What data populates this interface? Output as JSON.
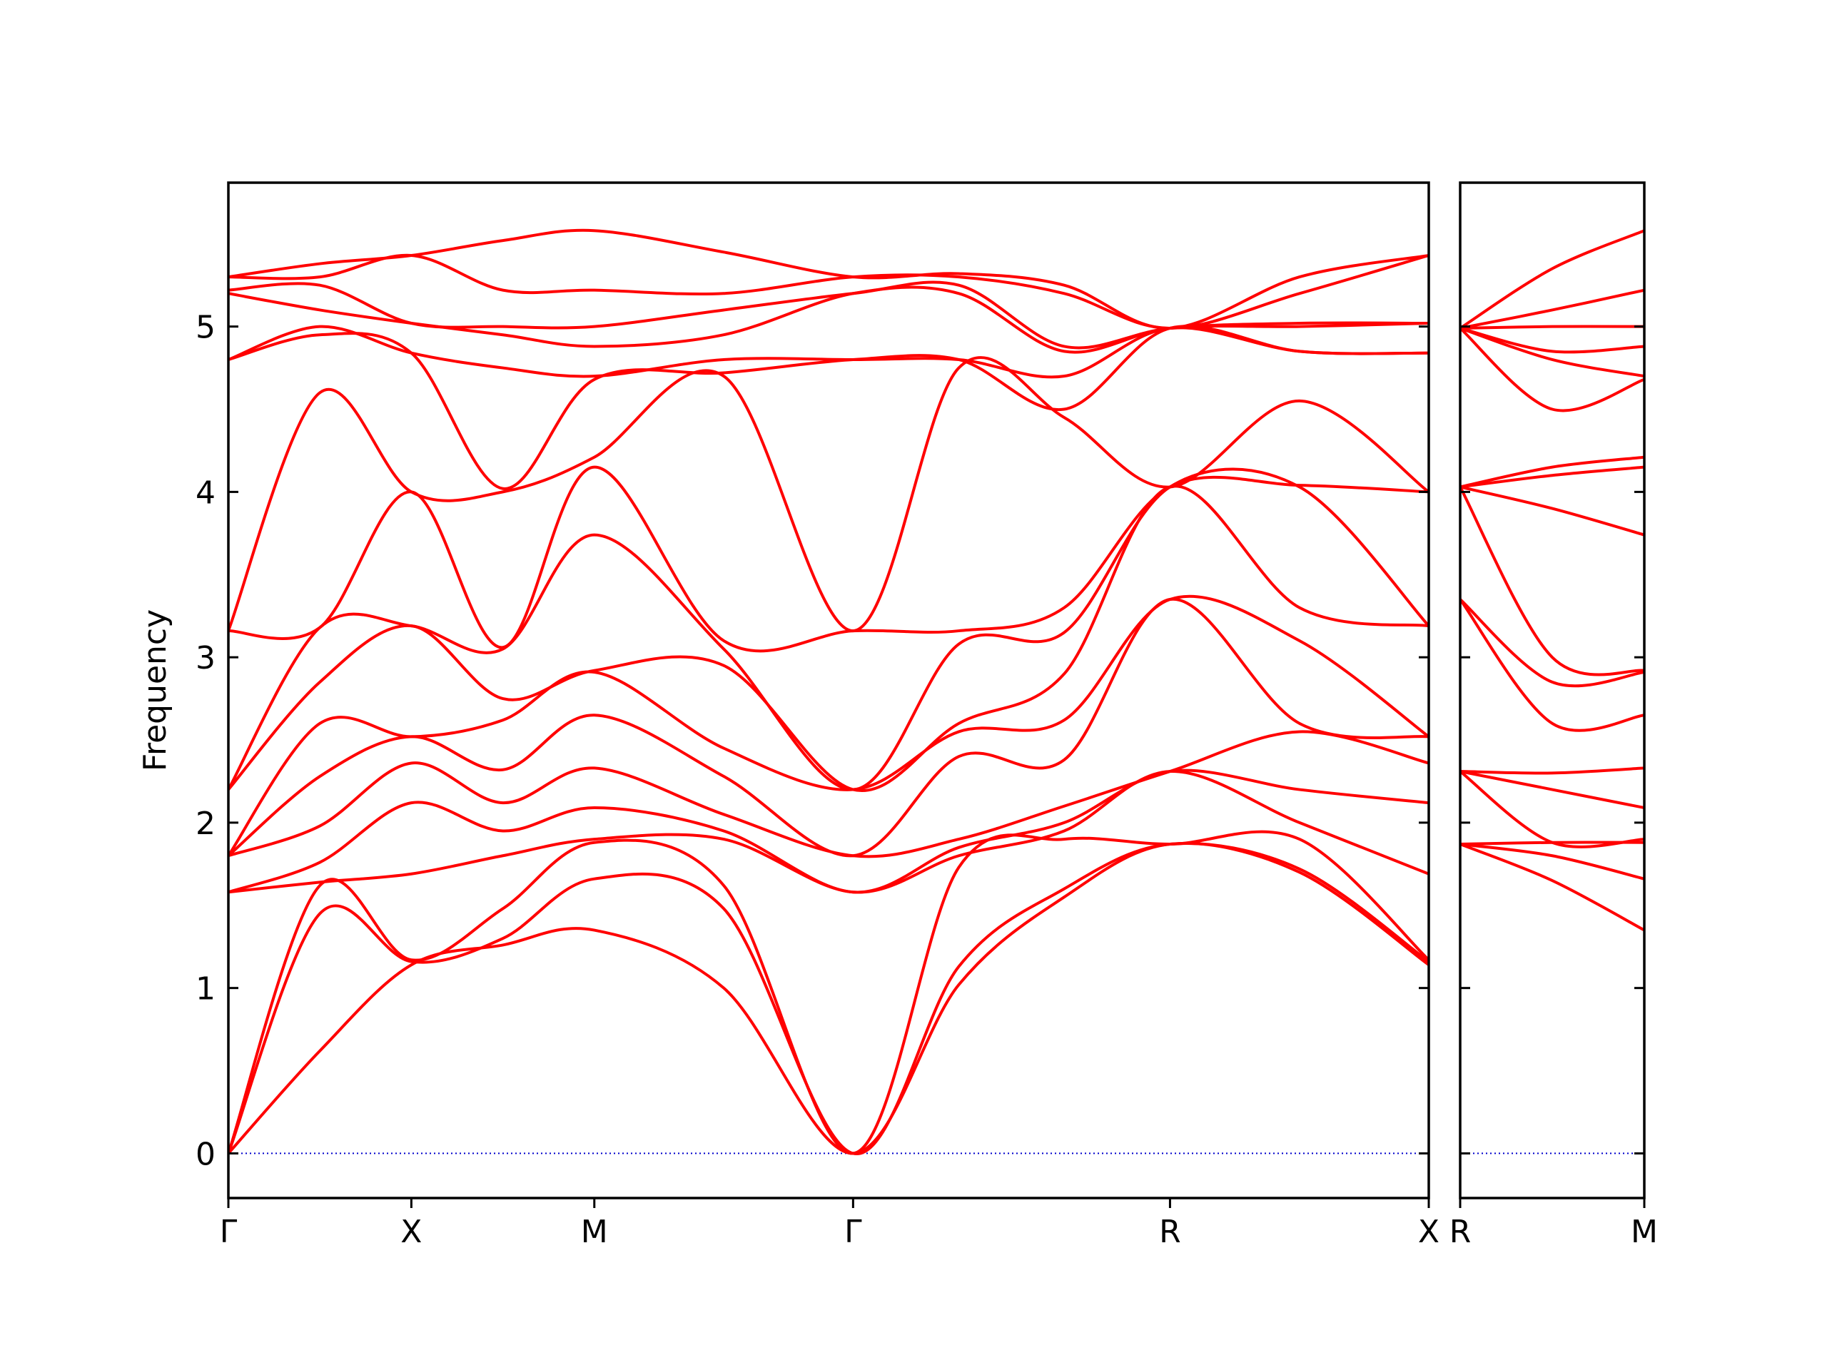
{
  "chart_data": [
    {
      "type": "line",
      "ylabel": "Frequency",
      "color": "#ff0000",
      "line_width": 4,
      "x": [
        0,
        0.25,
        0.5,
        0.75,
        1.0,
        1.3536,
        1.7071,
        1.996,
        2.284,
        2.5731,
        2.927,
        3.2802
      ],
      "xlim": [
        0,
        3.2802
      ],
      "xticks": [
        {
          "value": 0,
          "label": "Γ"
        },
        {
          "value": 0.5,
          "label": "X"
        },
        {
          "value": 1.0,
          "label": "M"
        },
        {
          "value": 1.7071,
          "label": "Γ"
        },
        {
          "value": 2.5731,
          "label": "R"
        },
        {
          "value": 3.2802,
          "label": "X"
        }
      ],
      "ylim": [
        -0.27,
        5.87
      ],
      "yticks": [
        0,
        1,
        2,
        3,
        4,
        5
      ],
      "ytick_labels": true,
      "hline": {
        "value": 0,
        "color": "#0000cc"
      },
      "series": [
        {
          "values": [
            0,
            0.62,
            1.14,
            1.26,
            1.35,
            1.0,
            0,
            1.02,
            1.55,
            1.87,
            1.7,
            1.14
          ]
        },
        {
          "values": [
            0,
            1.45,
            1.16,
            1.3,
            1.66,
            1.48,
            0,
            1.13,
            1.6,
            1.87,
            1.72,
            1.16
          ]
        },
        {
          "values": [
            0,
            1.62,
            1.17,
            1.48,
            1.88,
            1.62,
            0,
            1.73,
            1.9,
            1.87,
            1.9,
            1.17
          ]
        },
        {
          "values": [
            1.58,
            1.64,
            1.69,
            1.8,
            1.9,
            1.9,
            1.58,
            1.8,
            1.95,
            2.31,
            2.0,
            1.69
          ]
        },
        {
          "values": [
            1.58,
            1.76,
            2.12,
            1.95,
            2.09,
            1.95,
            1.58,
            1.85,
            2.0,
            2.31,
            2.2,
            2.12
          ]
        },
        {
          "values": [
            1.8,
            1.98,
            2.36,
            2.12,
            2.33,
            2.05,
            1.8,
            1.9,
            2.1,
            2.31,
            2.55,
            2.36
          ]
        },
        {
          "values": [
            1.8,
            2.28,
            2.52,
            2.32,
            2.65,
            2.28,
            1.8,
            2.4,
            2.38,
            3.35,
            2.6,
            2.52
          ]
        },
        {
          "values": [
            1.8,
            2.6,
            2.52,
            2.62,
            2.91,
            2.45,
            2.2,
            2.55,
            2.62,
            3.35,
            3.1,
            2.52
          ]
        },
        {
          "values": [
            2.2,
            2.85,
            3.19,
            2.75,
            2.92,
            2.95,
            2.2,
            2.6,
            2.9,
            4.03,
            3.3,
            3.19
          ]
        },
        {
          "values": [
            2.2,
            3.18,
            3.19,
            3.05,
            3.74,
            3.05,
            2.2,
            3.08,
            3.15,
            4.03,
            4.03,
            3.19
          ]
        },
        {
          "values": [
            3.16,
            3.18,
            4.0,
            3.06,
            4.15,
            3.1,
            3.16,
            3.16,
            3.3,
            4.03,
            4.04,
            4.0
          ]
        },
        {
          "values": [
            3.16,
            4.6,
            4.0,
            4.0,
            4.21,
            4.7,
            3.16,
            4.75,
            4.45,
            4.03,
            4.55,
            4.0
          ]
        },
        {
          "values": [
            4.8,
            4.95,
            4.84,
            4.02,
            4.68,
            4.72,
            4.8,
            4.8,
            4.5,
            4.99,
            4.85,
            4.84
          ]
        },
        {
          "values": [
            4.8,
            5.0,
            4.84,
            4.75,
            4.7,
            4.8,
            4.8,
            4.8,
            4.7,
            4.99,
            4.85,
            4.84
          ]
        },
        {
          "values": [
            5.2,
            5.1,
            5.02,
            4.95,
            4.88,
            4.95,
            5.2,
            5.2,
            4.85,
            4.99,
            5.0,
            5.02
          ]
        },
        {
          "values": [
            5.22,
            5.25,
            5.02,
            5.0,
            5.0,
            5.1,
            5.2,
            5.25,
            4.88,
            4.99,
            5.02,
            5.02
          ]
        },
        {
          "values": [
            5.3,
            5.3,
            5.43,
            5.22,
            5.22,
            5.2,
            5.3,
            5.3,
            5.2,
            4.99,
            5.2,
            5.43
          ]
        },
        {
          "values": [
            5.3,
            5.38,
            5.43,
            5.52,
            5.58,
            5.45,
            5.3,
            5.32,
            5.25,
            4.99,
            5.3,
            5.43
          ]
        }
      ]
    },
    {
      "type": "line",
      "color": "#ff0000",
      "line_width": 4,
      "x": [
        0,
        0.25,
        0.5
      ],
      "xlim": [
        0,
        0.5
      ],
      "xticks": [
        {
          "value": 0,
          "label": "R"
        },
        {
          "value": 0.5,
          "label": "M"
        }
      ],
      "ylim": [
        -0.27,
        5.87
      ],
      "yticks": [
        0,
        1,
        2,
        3,
        4,
        5
      ],
      "ytick_labels": false,
      "hline": {
        "value": 0,
        "color": "#0000cc"
      },
      "series": [
        {
          "values": [
            1.87,
            1.65,
            1.35
          ]
        },
        {
          "values": [
            1.87,
            1.8,
            1.66
          ]
        },
        {
          "values": [
            1.87,
            1.88,
            1.88
          ]
        },
        {
          "values": [
            2.31,
            1.88,
            1.9
          ]
        },
        {
          "values": [
            2.31,
            2.2,
            2.09
          ]
        },
        {
          "values": [
            2.31,
            2.3,
            2.33
          ]
        },
        {
          "values": [
            3.35,
            2.6,
            2.65
          ]
        },
        {
          "values": [
            3.35,
            2.85,
            2.91
          ]
        },
        {
          "values": [
            4.03,
            3.0,
            2.92
          ]
        },
        {
          "values": [
            4.03,
            3.9,
            3.74
          ]
        },
        {
          "values": [
            4.03,
            4.1,
            4.15
          ]
        },
        {
          "values": [
            4.03,
            4.15,
            4.21
          ]
        },
        {
          "values": [
            4.99,
            4.5,
            4.68
          ]
        },
        {
          "values": [
            4.99,
            4.8,
            4.7
          ]
        },
        {
          "values": [
            4.99,
            4.85,
            4.88
          ]
        },
        {
          "values": [
            4.99,
            5.0,
            5.0
          ]
        },
        {
          "values": [
            4.99,
            5.1,
            5.22
          ]
        },
        {
          "values": [
            4.99,
            5.35,
            5.58
          ]
        }
      ]
    }
  ]
}
